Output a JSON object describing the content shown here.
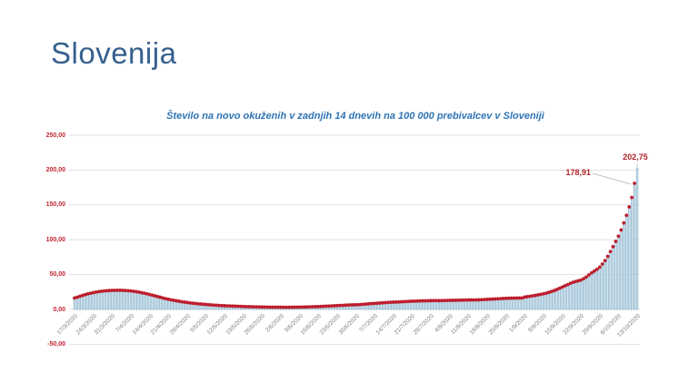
{
  "slide": {
    "title": "Slovenija"
  },
  "colors": {
    "slide_title": "#36608f",
    "chart_title": "#2e74b5",
    "y_axis_label": "#c32430",
    "x_axis_label": "#808080",
    "gridline": "#d9d9d9",
    "bar_fill": "#cfe3ef",
    "bar_stroke": "#74a3bf",
    "marker": "#be1e2d",
    "annotation": "#b12228",
    "leader_line": "#b0b0b0",
    "background": "#ffffff"
  },
  "chart_data": {
    "type": "bar",
    "title": "Število na novo okuženih v zadnjih 14 dnevih na 100 000 prebivalcev v Sloveniji",
    "xlabel": "",
    "ylabel": "",
    "ylim": [
      -50,
      250
    ],
    "grid": "horizontal",
    "legend": "none",
    "marker_on_bars": true,
    "start_date": "17/3/2020",
    "end_date": "13/10/2020",
    "y_ticks": [
      250,
      200,
      150,
      100,
      50,
      0,
      -50
    ],
    "y_tick_labels": [
      "250,00",
      "200,00",
      "150,00",
      "100,00",
      "50,00",
      "0,00",
      "-50,00"
    ],
    "x_tick_labels": [
      "17/3/2020",
      "24/3/2020",
      "31/3/2020",
      "7/4/2020",
      "14/4/2020",
      "21/4/2020",
      "28/4/2020",
      "5/5/2020",
      "12/5/2020",
      "19/5/2020",
      "26/5/2020",
      "2/6/2020",
      "9/6/2020",
      "16/6/2020",
      "23/6/2020",
      "30/6/2020",
      "7/7/2020",
      "14/7/2020",
      "21/7/2020",
      "28/7/2020",
      "4/8/2020",
      "11/8/2020",
      "18/8/2020",
      "25/8/2020",
      "1/9/2020",
      "8/9/2020",
      "15/9/2020",
      "22/9/2020",
      "29/9/2020",
      "6/10/2020",
      "13/10/2020"
    ],
    "x_tick_every_n_days": 7,
    "values": [
      14.3,
      15.5,
      16.8,
      18,
      19.2,
      20.3,
      21.2,
      22,
      22.8,
      23.4,
      24,
      24.4,
      24.8,
      25,
      25.2,
      25.3,
      25.4,
      25.4,
      25.3,
      25.1,
      24.8,
      24.4,
      24,
      23.4,
      22.8,
      22,
      21.2,
      20.3,
      19.4,
      18.4,
      17.4,
      16.4,
      15.4,
      14.4,
      13.4,
      12.5,
      11.8,
      11,
      10.4,
      9.7,
      9,
      8.4,
      7.9,
      7.4,
      6.9,
      6.5,
      6.1,
      5.7,
      5.4,
      5,
      4.7,
      4.4,
      4.1,
      3.9,
      3.6,
      3.4,
      3.2,
      3,
      2.9,
      2.7,
      2.6,
      2.4,
      2.3,
      2.1,
      2,
      1.9,
      1.8,
      1.7,
      1.6,
      1.5,
      1.4,
      1.3,
      1.3,
      1.2,
      1.2,
      1.1,
      1.1,
      1.1,
      1,
      1,
      1,
      1.1,
      1.1,
      1.2,
      1.3,
      1.3,
      1.4,
      1.5,
      1.6,
      1.8,
      1.9,
      2,
      2.2,
      2.4,
      2.6,
      2.8,
      3,
      3.2,
      3.4,
      3.6,
      3.8,
      4,
      4.2,
      4.4,
      4.5,
      4.6,
      4.8,
      5.1,
      5.4,
      5.7,
      6,
      6.3,
      6.5,
      6.8,
      7.1,
      7.4,
      7.7,
      8,
      8.2,
      8.4,
      8.5,
      8.7,
      8.9,
      9.1,
      9.3,
      9.5,
      9.8,
      9.8,
      10,
      10.1,
      10.2,
      10.3,
      10.4,
      10.5,
      10.6,
      10.6,
      10.5,
      10.6,
      10.7,
      10.8,
      10.9,
      11,
      11,
      11.1,
      11.2,
      11.3,
      11.4,
      11.5,
      11.5,
      11.6,
      11.6,
      11.7,
      11.9,
      12.1,
      12.4,
      12.6,
      12.8,
      13,
      13.2,
      13.4,
      13.6,
      13.8,
      14,
      14.1,
      14.2,
      14.3,
      14.3,
      14.4,
      15.6,
      16.2,
      16.8,
      17.4,
      18.1,
      18.8,
      19.6,
      20.4,
      21.2,
      22.4,
      23.6,
      25,
      26.5,
      28.2,
      30,
      31.7,
      33.4,
      35.2,
      36.8,
      38,
      39,
      40,
      42,
      44.5,
      47.5,
      50.5,
      53,
      55.5,
      58.6,
      63,
      68,
      74,
      81,
      88,
      95.5,
      103,
      112,
      122,
      133,
      145,
      158.5,
      178.91,
      202.75
    ],
    "annotations": [
      {
        "text": "178,91",
        "value": 178.91,
        "date": "12/10/2020"
      },
      {
        "text": "202,75",
        "value": 202.75,
        "date": "13/10/2020"
      }
    ]
  }
}
